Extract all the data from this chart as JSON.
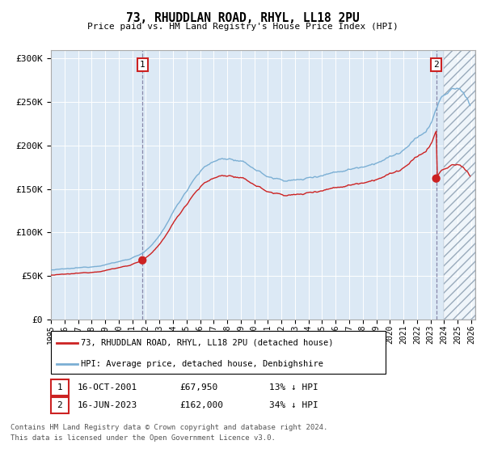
{
  "title": "73, RHUDDLAN ROAD, RHYL, LL18 2PU",
  "subtitle": "Price paid vs. HM Land Registry's House Price Index (HPI)",
  "legend_line1": "73, RHUDDLAN ROAD, RHYL, LL18 2PU (detached house)",
  "legend_line2": "HPI: Average price, detached house, Denbighshire",
  "transaction1_date": "16-OCT-2001",
  "transaction1_price": 67950,
  "transaction1_label": "13% ↓ HPI",
  "transaction2_date": "16-JUN-2023",
  "transaction2_price": 162000,
  "transaction2_label": "34% ↓ HPI",
  "hpi_color": "#7bafd4",
  "property_color": "#cc2222",
  "dot_color": "#cc2222",
  "bg_color": "#dce9f5",
  "ymin": 0,
  "ymax": 310000,
  "footer1": "Contains HM Land Registry data © Crown copyright and database right 2024.",
  "footer2": "This data is licensed under the Open Government Licence v3.0."
}
